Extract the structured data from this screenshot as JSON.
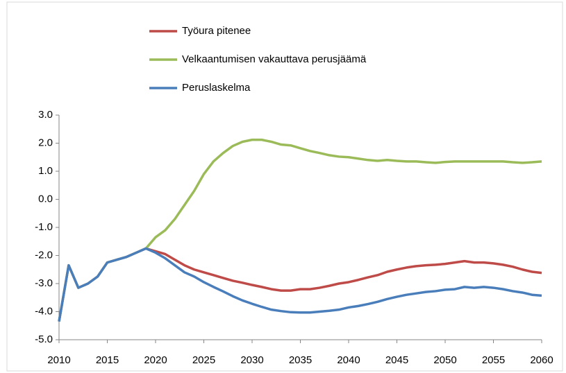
{
  "chart_data": {
    "type": "line",
    "x": [
      2010,
      2011,
      2012,
      2013,
      2014,
      2015,
      2016,
      2017,
      2018,
      2019,
      2020,
      2021,
      2022,
      2023,
      2024,
      2025,
      2026,
      2027,
      2028,
      2029,
      2030,
      2031,
      2032,
      2033,
      2034,
      2035,
      2036,
      2037,
      2038,
      2039,
      2040,
      2041,
      2042,
      2043,
      2044,
      2045,
      2046,
      2047,
      2048,
      2049,
      2050,
      2051,
      2052,
      2053,
      2054,
      2055,
      2056,
      2057,
      2058,
      2059,
      2060
    ],
    "series": [
      {
        "name": "Työura pitenee",
        "color": "#be4b48",
        "values": [
          -4.35,
          -2.35,
          -3.15,
          -3.0,
          -2.75,
          -2.25,
          -2.15,
          -2.05,
          -1.9,
          -1.75,
          -1.85,
          -1.95,
          -2.15,
          -2.35,
          -2.5,
          -2.6,
          -2.7,
          -2.8,
          -2.9,
          -2.97,
          -3.05,
          -3.12,
          -3.2,
          -3.25,
          -3.25,
          -3.2,
          -3.2,
          -3.15,
          -3.08,
          -3.0,
          -2.95,
          -2.87,
          -2.78,
          -2.7,
          -2.58,
          -2.5,
          -2.43,
          -2.38,
          -2.35,
          -2.33,
          -2.3,
          -2.25,
          -2.2,
          -2.25,
          -2.25,
          -2.28,
          -2.33,
          -2.4,
          -2.5,
          -2.58,
          -2.62
        ]
      },
      {
        "name": "Velkaantumisen vakauttava perusjäämä",
        "color": "#9bbb59",
        "values": [
          -4.35,
          -2.35,
          -3.15,
          -3.0,
          -2.75,
          -2.25,
          -2.15,
          -2.05,
          -1.9,
          -1.75,
          -1.35,
          -1.1,
          -0.7,
          -0.2,
          0.3,
          0.9,
          1.35,
          1.65,
          1.9,
          2.05,
          2.12,
          2.12,
          2.05,
          1.95,
          1.92,
          1.82,
          1.72,
          1.65,
          1.57,
          1.52,
          1.5,
          1.45,
          1.4,
          1.37,
          1.4,
          1.37,
          1.35,
          1.35,
          1.32,
          1.3,
          1.33,
          1.35,
          1.35,
          1.35,
          1.35,
          1.35,
          1.35,
          1.32,
          1.3,
          1.32,
          1.35
        ]
      },
      {
        "name": "Peruslaskelma",
        "color": "#4a7ebb",
        "values": [
          -4.35,
          -2.35,
          -3.15,
          -3.0,
          -2.75,
          -2.25,
          -2.15,
          -2.05,
          -1.9,
          -1.75,
          -1.9,
          -2.1,
          -2.35,
          -2.6,
          -2.75,
          -2.95,
          -3.12,
          -3.28,
          -3.45,
          -3.6,
          -3.72,
          -3.83,
          -3.93,
          -3.98,
          -4.02,
          -4.03,
          -4.03,
          -4.0,
          -3.97,
          -3.93,
          -3.85,
          -3.8,
          -3.73,
          -3.65,
          -3.55,
          -3.47,
          -3.4,
          -3.35,
          -3.3,
          -3.27,
          -3.22,
          -3.2,
          -3.12,
          -3.15,
          -3.12,
          -3.15,
          -3.2,
          -3.27,
          -3.32,
          -3.4,
          -3.43
        ]
      }
    ],
    "xlim": [
      2010,
      2060
    ],
    "xticks": [
      2010,
      2015,
      2020,
      2025,
      2030,
      2035,
      2040,
      2045,
      2050,
      2055,
      2060
    ],
    "ylim": [
      -5,
      3
    ],
    "yticks": [
      {
        "value": -5,
        "label": "-5.0"
      },
      {
        "value": -4,
        "label": "-4.0"
      },
      {
        "value": -3,
        "label": "-3.0"
      },
      {
        "value": -2,
        "label": "-2.0"
      },
      {
        "value": -1,
        "label": "-1.0"
      },
      {
        "value": 0,
        "label": "0.0"
      },
      {
        "value": 1,
        "label": "1.0"
      },
      {
        "value": 2,
        "label": "2.0"
      },
      {
        "value": 3,
        "label": "3.0"
      }
    ],
    "grid": false,
    "legend": "top"
  }
}
